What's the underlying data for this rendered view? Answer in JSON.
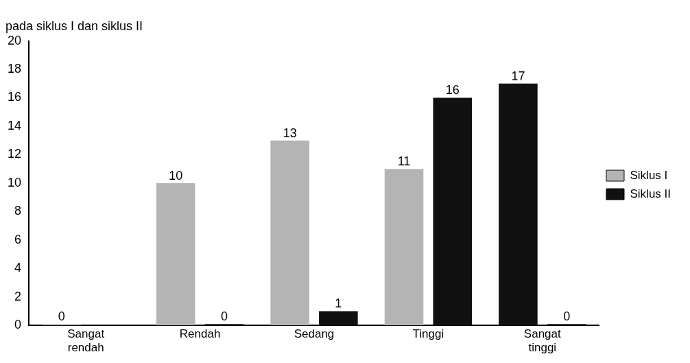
{
  "chart_data": {
    "type": "bar",
    "title": "pada siklus I dan siklus II",
    "categories": [
      "Sangat rendah",
      "Rendah",
      "Sedang",
      "Tinggi",
      "Sangat tinggi"
    ],
    "series": [
      {
        "name": "Siklus I",
        "color": "#b4b4b4",
        "colors": [
          "#b4b4b4",
          "#b4b4b4",
          "#b4b4b4",
          "#b4b4b4",
          "#111111"
        ],
        "values": [
          0,
          10,
          13,
          11,
          17
        ]
      },
      {
        "name": "Siklus II",
        "color": "#111111",
        "values": [
          null,
          0,
          1,
          16,
          0
        ]
      }
    ],
    "ylim": [
      0,
      20
    ],
    "yticks": [
      0,
      2,
      4,
      6,
      8,
      10,
      12,
      14,
      16,
      18,
      20
    ],
    "grid": false,
    "legend": "right",
    "data_labels": true
  }
}
